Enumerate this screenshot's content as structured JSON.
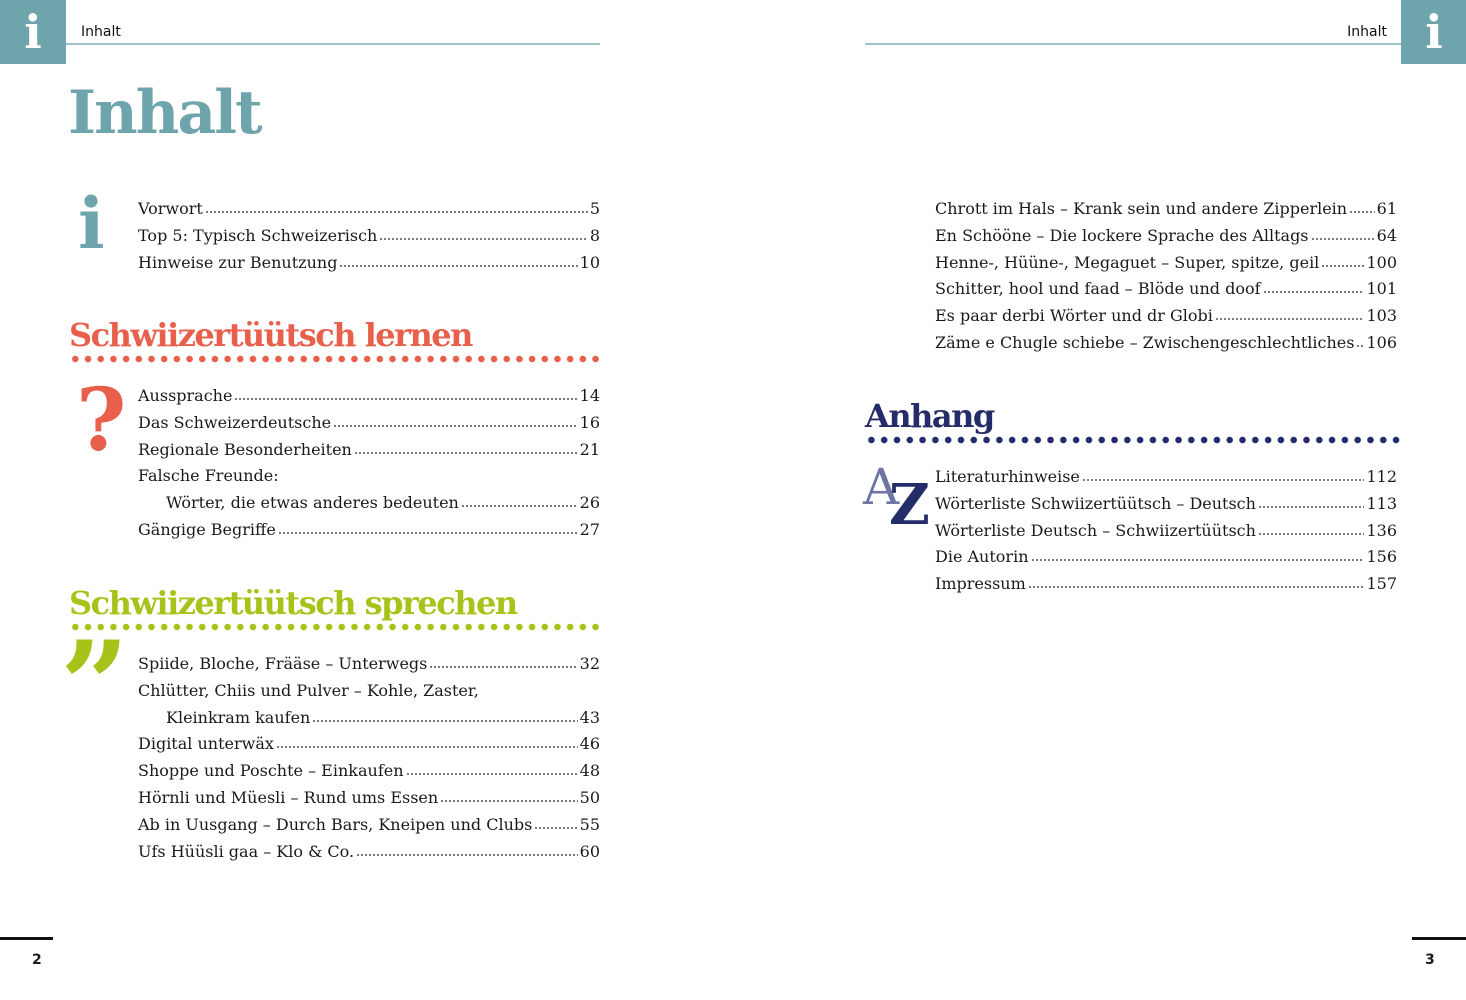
{
  "colors": {
    "teal": "#6ea4ab",
    "red": "#e8604c",
    "green": "#a9c21a",
    "navy": "#252c6a"
  },
  "header": {
    "left": "Inhalt",
    "right": "Inhalt",
    "tab_glyph": "i"
  },
  "title": "Inhalt",
  "intro": {
    "icon": "info-icon",
    "entries": [
      {
        "label": "Vorwort",
        "page": "5"
      },
      {
        "label": "Top 5: Typisch Schweizerisch",
        "page": "8"
      },
      {
        "label": "Hinweise zur Benutzung",
        "page": "10"
      }
    ]
  },
  "lernen": {
    "heading": "Schwiizertüütsch lernen",
    "icon": "question-mark-icon",
    "entries": [
      {
        "label": "Aussprache",
        "page": "14"
      },
      {
        "label": "Das Schweizerdeutsche",
        "page": "16"
      },
      {
        "label": "Regionale Besonderheiten",
        "page": "21"
      },
      {
        "label": "Falsche Freunde:",
        "page": ""
      },
      {
        "label": "Wörter, die etwas anderes bedeuten",
        "page": "26",
        "indent": true
      },
      {
        "label": "Gängige Begriffe",
        "page": "27"
      }
    ]
  },
  "sprechen": {
    "heading": "Schwiizertüütsch sprechen",
    "icon": "quote-icon",
    "entries": [
      {
        "label": "Spiide, Bloche, Frääse – Unterwegs",
        "page": "32"
      },
      {
        "label": "Chlütter, Chiis und Pulver – Kohle, Zaster,",
        "page": ""
      },
      {
        "label": "Kleinkram kaufen",
        "page": "43",
        "indent": true
      },
      {
        "label": "Digital unterwäx",
        "page": "46"
      },
      {
        "label": "Shoppe und Poschte – Einkaufen",
        "page": "48"
      },
      {
        "label": "Hörnli und Müesli – Rund ums Essen",
        "page": "50"
      },
      {
        "label": "Ab in Uusgang – Durch Bars, Kneipen und Clubs",
        "page": "55"
      },
      {
        "label": "Ufs Hüüsli gaa – Klo & Co.",
        "page": "60"
      }
    ]
  },
  "sprechen_cont": {
    "entries": [
      {
        "label": "Chrott im Hals – Krank sein und andere Zipperlein",
        "page": "61"
      },
      {
        "label": "En Schööne – Die lockere Sprache des Alltags",
        "page": "64"
      },
      {
        "label": "Henne-, Hüüne-, Megaguet – Super, spitze, geil",
        "page": "100"
      },
      {
        "label": "Schitter, hool und faad – Blöde und doof",
        "page": "101"
      },
      {
        "label": "Es paar derbi Wörter und dr Globi",
        "page": "103"
      },
      {
        "label": "Zäme e Chugle schiebe – Zwischengeschlechtliches",
        "page": "106"
      }
    ]
  },
  "anhang": {
    "heading": "Anhang",
    "icon": "a-z-icon",
    "icon_text": {
      "a": "A",
      "z": "Z"
    },
    "entries": [
      {
        "label": "Literaturhinweise",
        "page": "112"
      },
      {
        "label": "Wörterliste Schwiizertüütsch – Deutsch",
        "page": "113"
      },
      {
        "label": "Wörterliste Deutsch – Schwiizertüütsch",
        "page": "136"
      },
      {
        "label": "Die Autorin",
        "page": "156"
      },
      {
        "label": "Impressum",
        "page": "157"
      }
    ]
  },
  "footer": {
    "left_page": "2",
    "right_page": "3"
  }
}
